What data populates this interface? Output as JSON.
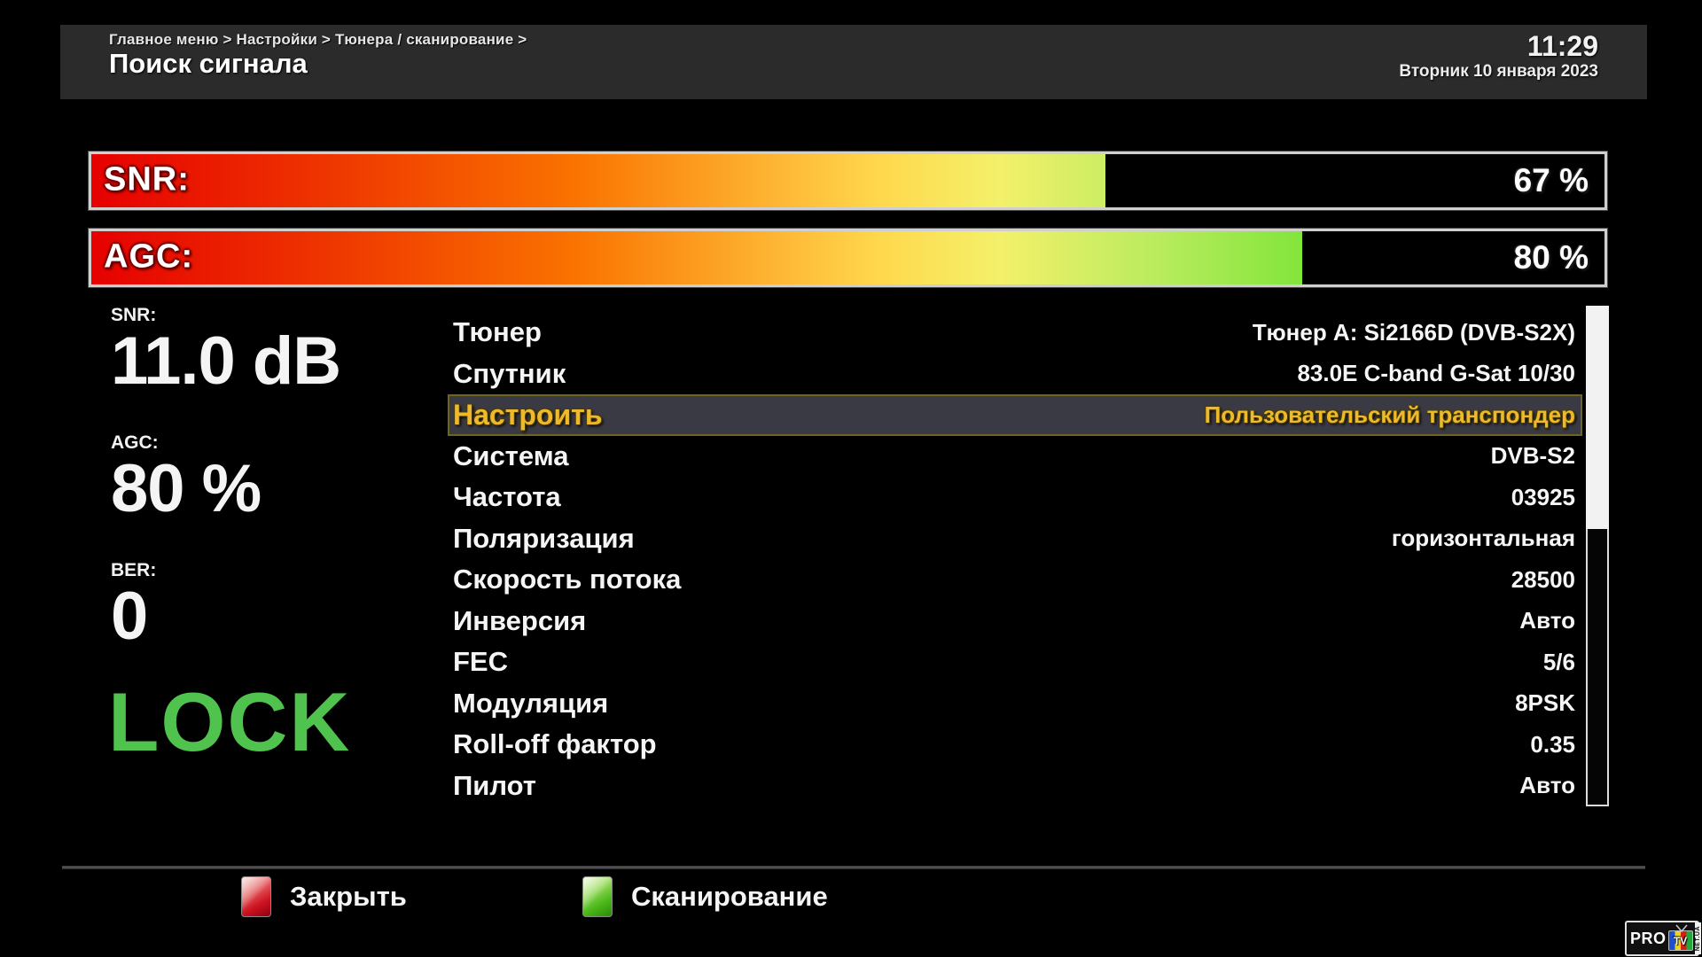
{
  "header": {
    "breadcrumb": "Главное меню > Настройки > Тюнера / сканирование >",
    "title": "Поиск сигнала",
    "time": "11:29",
    "date": "Вторник 10 января 2023"
  },
  "bars": [
    {
      "label": "SNR:",
      "percent": 67,
      "value_text": "67 %"
    },
    {
      "label": "AGC:",
      "percent": 80,
      "value_text": "80 %"
    }
  ],
  "metrics": [
    {
      "label": "SNR:",
      "value": "11.0 dB"
    },
    {
      "label": "AGC:",
      "value": "80 %"
    },
    {
      "label": "BER:",
      "value": "0"
    }
  ],
  "lock_status": "LOCK",
  "menu": {
    "selected_index": 2,
    "items": [
      {
        "label": "Тюнер",
        "value": "Тюнер A: Si2166D (DVB-S2X)"
      },
      {
        "label": "Спутник",
        "value": "83.0E C-band G-Sat 10/30"
      },
      {
        "label": "Настроить",
        "value": "Пользовательский транспондер"
      },
      {
        "label": "Система",
        "value": "DVB-S2"
      },
      {
        "label": "Частота",
        "value": "03925"
      },
      {
        "label": "Поляризация",
        "value": "горизонтальная"
      },
      {
        "label": "Скорость потока",
        "value": "28500"
      },
      {
        "label": "Инверсия",
        "value": "Авто"
      },
      {
        "label": "FEC",
        "value": "5/6"
      },
      {
        "label": "Модуляция",
        "value": "8PSK"
      },
      {
        "label": "Roll-off фактор",
        "value": "0.35"
      },
      {
        "label": "Пилот",
        "value": "Авто"
      }
    ]
  },
  "scrollbar": {
    "thumb_percent": 45
  },
  "footer": {
    "buttons": [
      {
        "key": "red",
        "label": "Закрыть"
      },
      {
        "key": "green",
        "label": "Сканирование"
      }
    ]
  },
  "logo": {
    "pro": "PRO",
    "tv": "TV",
    "net": "NET.UA"
  },
  "colors": {
    "accent_gold": "#ecba2c",
    "lock_green": "#50c24e",
    "selected_row_bg": "#3a3a44",
    "selected_row_border": "#6f6420",
    "key_red": "#cd1220",
    "key_green": "#49b719",
    "header_band": "#2b2b2b",
    "bar_gradient_start": "#e60000",
    "bar_gradient_end": "#3ad410"
  }
}
